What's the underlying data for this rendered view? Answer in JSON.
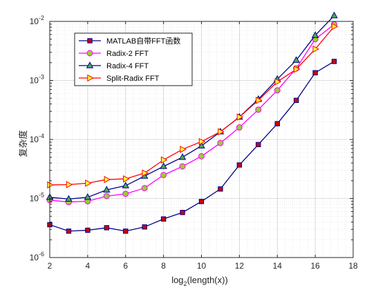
{
  "chart_data": {
    "type": "line",
    "xlabel": "log",
    "xlabel_sub": "2",
    "xlabel_rest": "(length(x))",
    "ylabel": "复杂度",
    "xlim": [
      2,
      18
    ],
    "ylim": [
      1e-06,
      0.01
    ],
    "yscale": "log",
    "grid": true,
    "minor_grid": true,
    "legend_position": "top-left",
    "x_ticks": [
      "2",
      "4",
      "6",
      "8",
      "10",
      "12",
      "14",
      "16",
      "18"
    ],
    "y_ticks": [
      {
        "base": "10",
        "exp": "-6"
      },
      {
        "base": "10",
        "exp": "-5"
      },
      {
        "base": "10",
        "exp": "-4"
      },
      {
        "base": "10",
        "exp": "-3"
      },
      {
        "base": "10",
        "exp": "-2"
      }
    ],
    "x": [
      2,
      3,
      4,
      5,
      6,
      7,
      8,
      9,
      10,
      11,
      12,
      13,
      14,
      15,
      16,
      17
    ],
    "series": [
      {
        "name": "MATLAB自带FFT函数",
        "color": "#00008b",
        "marker": "square",
        "marker_fill": "#cc0000",
        "values": [
          3.6e-06,
          2.8e-06,
          2.9e-06,
          3.2e-06,
          2.8e-06,
          3.3e-06,
          4.5e-06,
          5.8e-06,
          8.9e-06,
          1.45e-05,
          3.7e-05,
          8.2e-05,
          0.000185,
          0.00046,
          0.00135,
          0.0021
        ]
      },
      {
        "name": "Radix-2 FFT",
        "color": "#ff00ff",
        "marker": "circle",
        "marker_fill": "#9acd32",
        "values": [
          9.4e-06,
          8.7e-06,
          9e-06,
          1.1e-05,
          1.2e-05,
          1.5e-05,
          2.5e-05,
          3.5e-05,
          5.2e-05,
          8.7e-05,
          0.00016,
          0.00032,
          0.00068,
          0.0016,
          0.005,
          0.0089
        ]
      },
      {
        "name": "Radix-4 FFT",
        "color": "#00008b",
        "marker": "triangle-up",
        "marker_fill": "#4cae4c",
        "values": [
          1.05e-05,
          9.8e-06,
          1.05e-05,
          1.4e-05,
          1.65e-05,
          2.4e-05,
          3.5e-05,
          5e-05,
          7.8e-05,
          0.000135,
          0.00024,
          0.00048,
          0.00105,
          0.0022,
          0.0058,
          0.0125
        ]
      },
      {
        "name": "Split-Radix FFT",
        "color": "#ff0000",
        "marker": "triangle-right",
        "marker_fill": "#ffff33",
        "values": [
          1.7e-05,
          1.72e-05,
          1.82e-05,
          2.1e-05,
          2.15e-05,
          2.7e-05,
          4.5e-05,
          6.8e-05,
          9.2e-05,
          0.000135,
          0.00024,
          0.00046,
          0.00095,
          0.00155,
          0.0034,
          0.0082
        ]
      }
    ]
  }
}
